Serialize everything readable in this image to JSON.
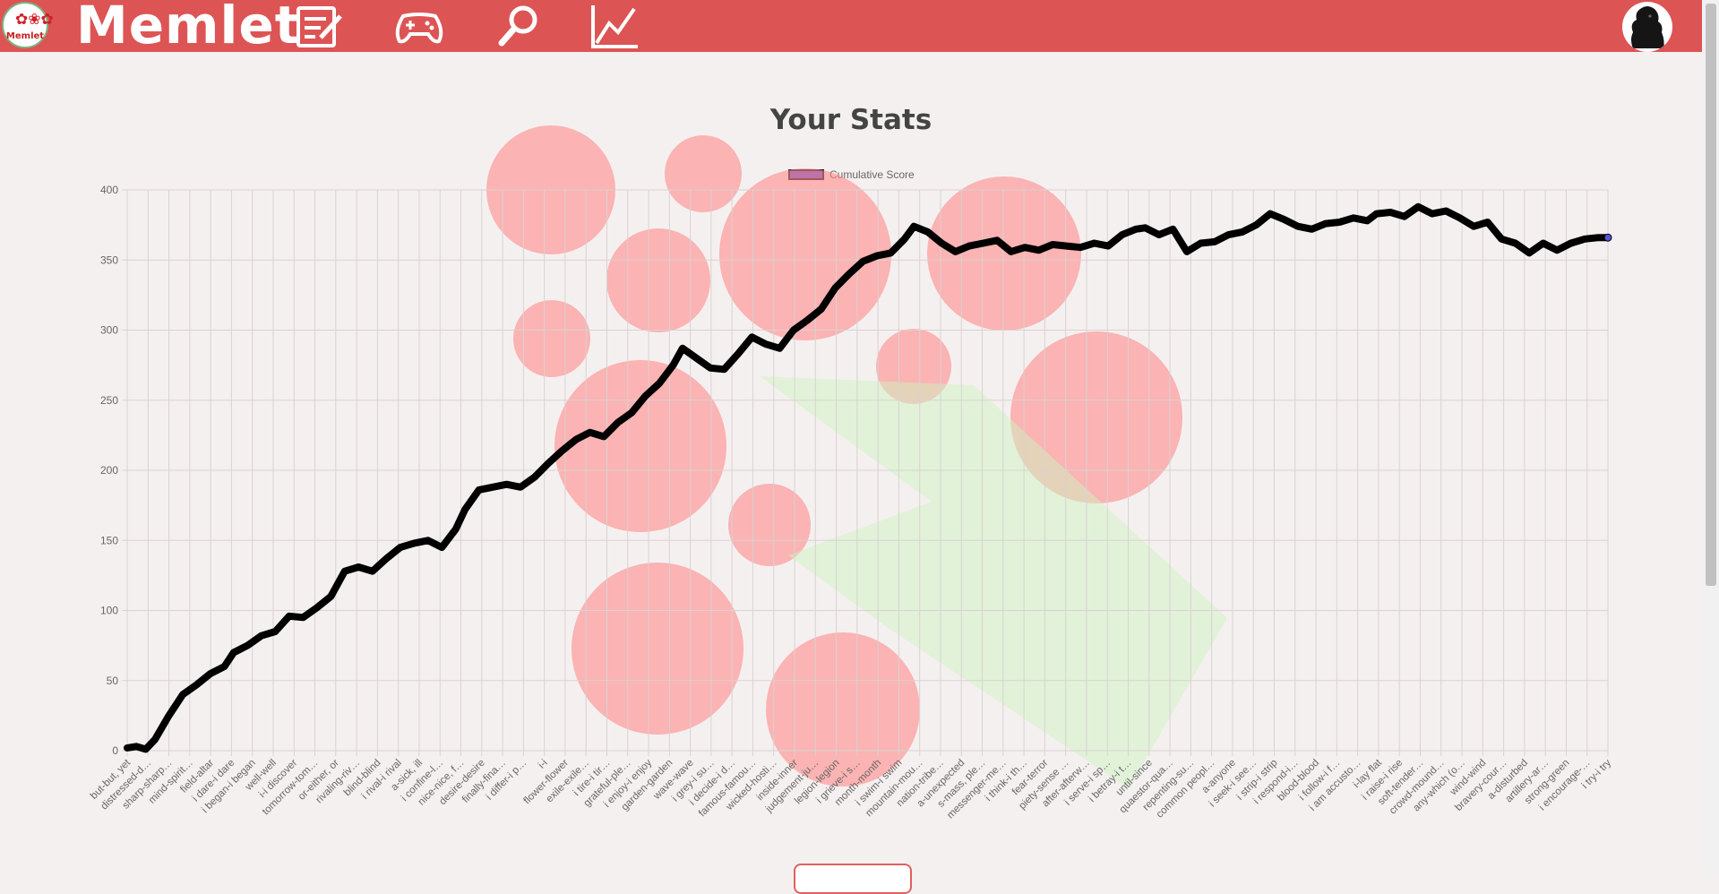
{
  "app": {
    "brand": "Memlet",
    "logo_text": "Memlet",
    "logo_icon": "flower-icon"
  },
  "nav": {
    "items": [
      {
        "icon": "edit-notes-icon"
      },
      {
        "icon": "gamepad-icon"
      },
      {
        "icon": "search-icon"
      },
      {
        "icon": "stats-chart-icon"
      }
    ],
    "avatar_icon": "dog-avatar"
  },
  "colors": {
    "header": "#dd5455",
    "line": "#000000",
    "legend_fill": "#5b53d6",
    "bubble": "#ff8a8a",
    "star": "#cdf4c0"
  },
  "page": {
    "title": "Your Stats"
  },
  "chart_data": {
    "type": "line",
    "title": "",
    "xlabel": "",
    "ylabel": "",
    "ylim": [
      0,
      400
    ],
    "yticks": [
      0,
      50,
      100,
      150,
      200,
      250,
      300,
      350,
      400
    ],
    "grid": true,
    "legend_position": "top-center",
    "series": [
      {
        "name": "Cumulative Score",
        "x": [
          0,
          2,
          4,
          6,
          9,
          12,
          15,
          18,
          21,
          23,
          26,
          29,
          32,
          35,
          38,
          41,
          44,
          47,
          50,
          53,
          56,
          59,
          62,
          65,
          68,
          71,
          73,
          76,
          79,
          82,
          85,
          88,
          91,
          94,
          97,
          100,
          103,
          106,
          109,
          112,
          115,
          118,
          120,
          123,
          126,
          129,
          132,
          135,
          138,
          141,
          144,
          147,
          150,
          153,
          156,
          159,
          162,
          165,
          168,
          170,
          173,
          176,
          179,
          182,
          185,
          188,
          191,
          194,
          197,
          200,
          203,
          206,
          209,
          212,
          215,
          218,
          220,
          223,
          226,
          229,
          232,
          235,
          238,
          241,
          244,
          247,
          250,
          253,
          256,
          259,
          262,
          265,
          268,
          270,
          273,
          276,
          279,
          282,
          285,
          288,
          291,
          294,
          297,
          300,
          303,
          306,
          309,
          312,
          315,
          318,
          320
        ],
        "values": [
          2,
          3,
          1,
          8,
          25,
          40,
          47,
          55,
          60,
          70,
          75,
          82,
          85,
          96,
          95,
          102,
          110,
          128,
          131,
          128,
          137,
          145,
          148,
          150,
          145,
          158,
          172,
          186,
          188,
          190,
          188,
          195,
          205,
          214,
          222,
          227,
          224,
          234,
          241,
          253,
          262,
          275,
          287,
          280,
          273,
          272,
          283,
          295,
          290,
          287,
          300,
          307,
          315,
          330,
          340,
          349,
          353,
          355,
          365,
          374,
          370,
          362,
          356,
          360,
          362,
          364,
          356,
          359,
          357,
          361,
          360,
          359,
          362,
          360,
          368,
          372,
          373,
          368,
          372,
          356,
          362,
          363,
          368,
          370,
          375,
          383,
          379,
          374,
          372,
          376,
          377,
          380,
          378,
          383,
          384,
          381,
          388,
          383,
          385,
          380,
          374,
          377,
          365,
          362,
          355,
          362,
          357,
          362,
          365,
          366,
          366
        ]
      }
    ],
    "categories": [
      "but-but, yet",
      "distressed-d…",
      "sharp-sharp…",
      "mind-spirit…",
      "field-altar",
      "i dare-i dare",
      "i began-i began",
      "well-well",
      "i-i discover",
      "tomorrow-tom…",
      "or-either, or",
      "rivaling-riv…",
      "blind-blind",
      "i rival-i rival",
      "a-sick, ill",
      "i confine-l…",
      "nice-nice, f…",
      "desire-desire",
      "finally-fina…",
      "i differ-i p…",
      "i-i",
      "flower-flower",
      "exile-exile…",
      "i tire-i tir…",
      "grateful-ple…",
      "i enjoy-i enjoy",
      "garden-garden",
      "wave-wave",
      "i grey-i su…",
      "i decide-i d…",
      "famous-famou…",
      "wicked-hosti…",
      "inside-inner",
      "judgement-ju…",
      "legion-legion",
      "i grieve-i s…",
      "month-month",
      "i swim-i swim",
      "mountain-mou…",
      "nation-tribe…",
      "a-unexpected",
      "s-mass, ple…",
      "messenger-me…",
      "i think-i th…",
      "fear-terror",
      "piety-sense …",
      "after-afterw…",
      "i serve-i sp…",
      "i betray-i t…",
      "until-since",
      "quaestor-qua…",
      "repenting-su…",
      "common peopl…",
      "a-anyone",
      "i seek-i see…",
      "i strip-i strip",
      "i respond-i…",
      "blood-blood",
      "i follow-i f…",
      "i am accusto…",
      "i-lay flat",
      "i raise-i rise",
      "soft-tender…",
      "crowd-mound…",
      "any-which (o…",
      "wind-wind",
      "bravery-cour…",
      "a-disturbed",
      "artillery-ar…",
      "strong-green",
      "i encourage-…",
      "i try-i try"
    ]
  }
}
